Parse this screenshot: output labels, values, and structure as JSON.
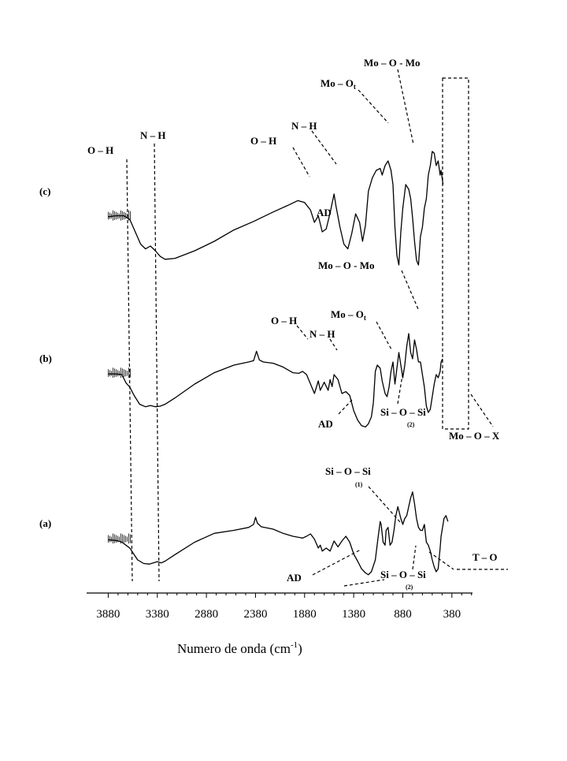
{
  "chart_data": {
    "type": "line",
    "title": "",
    "xlabel": "Numero de onda (cm",
    "xlabel_sup": "-1",
    "xlabel_close": ")",
    "ylabel": "",
    "xlim": [
      4100,
      170
    ],
    "x_reversed": true,
    "grid": false,
    "x_ticks": [
      3880,
      3380,
      2880,
      2380,
      1880,
      1380,
      880,
      380
    ],
    "series": [
      {
        "name": "(c)",
        "points": [
          [
            3880,
            0.29
          ],
          [
            3800,
            0.28
          ],
          [
            3720,
            0.28
          ],
          [
            3660,
            0.32
          ],
          [
            3600,
            0.46
          ],
          [
            3550,
            0.58
          ],
          [
            3500,
            0.63
          ],
          [
            3450,
            0.6
          ],
          [
            3400,
            0.65
          ],
          [
            3350,
            0.71
          ],
          [
            3300,
            0.74
          ],
          [
            3200,
            0.73
          ],
          [
            3000,
            0.65
          ],
          [
            2800,
            0.55
          ],
          [
            2600,
            0.43
          ],
          [
            2400,
            0.34
          ],
          [
            2200,
            0.24
          ],
          [
            2050,
            0.17
          ],
          [
            1950,
            0.12
          ],
          [
            1880,
            0.14
          ],
          [
            1820,
            0.22
          ],
          [
            1780,
            0.35
          ],
          [
            1740,
            0.28
          ],
          [
            1700,
            0.45
          ],
          [
            1660,
            0.42
          ],
          [
            1620,
            0.25
          ],
          [
            1580,
            0.05
          ],
          [
            1560,
            0.18
          ],
          [
            1520,
            0.4
          ],
          [
            1480,
            0.58
          ],
          [
            1440,
            0.63
          ],
          [
            1400,
            0.47
          ],
          [
            1360,
            0.26
          ],
          [
            1320,
            0.35
          ],
          [
            1290,
            0.55
          ],
          [
            1260,
            0.38
          ],
          [
            1230,
            0.02
          ],
          [
            1190,
            -0.12
          ],
          [
            1150,
            -0.2
          ],
          [
            1110,
            -0.22
          ],
          [
            1090,
            -0.15
          ],
          [
            1060,
            -0.25
          ],
          [
            1030,
            -0.3
          ],
          [
            1000,
            -0.2
          ],
          [
            980,
            -0.05
          ],
          [
            960,
            0.4
          ],
          [
            940,
            0.7
          ],
          [
            920,
            0.8
          ],
          [
            900,
            0.45
          ],
          [
            880,
            0.2
          ],
          [
            850,
            -0.05
          ],
          [
            820,
            0.0
          ],
          [
            800,
            0.1
          ],
          [
            780,
            0.3
          ],
          [
            760,
            0.55
          ],
          [
            740,
            0.75
          ],
          [
            720,
            0.8
          ],
          [
            700,
            0.5
          ],
          [
            680,
            0.4
          ],
          [
            660,
            0.2
          ],
          [
            640,
            0.1
          ],
          [
            620,
            -0.15
          ],
          [
            600,
            -0.25
          ],
          [
            580,
            -0.4
          ],
          [
            560,
            -0.38
          ],
          [
            540,
            -0.25
          ],
          [
            520,
            -0.3
          ],
          [
            500,
            -0.15
          ],
          [
            490,
            -0.2
          ],
          [
            470,
            -0.05
          ]
        ]
      },
      {
        "name": "(b)",
        "points": [
          [
            3880,
            0.24
          ],
          [
            3800,
            0.24
          ],
          [
            3740,
            0.25
          ],
          [
            3700,
            0.38
          ],
          [
            3660,
            0.45
          ],
          [
            3620,
            0.57
          ],
          [
            3560,
            0.72
          ],
          [
            3500,
            0.76
          ],
          [
            3450,
            0.74
          ],
          [
            3400,
            0.76
          ],
          [
            3350,
            0.75
          ],
          [
            3300,
            0.72
          ],
          [
            3200,
            0.62
          ],
          [
            3000,
            0.4
          ],
          [
            2800,
            0.22
          ],
          [
            2600,
            0.1
          ],
          [
            2450,
            0.05
          ],
          [
            2400,
            0.03
          ],
          [
            2370,
            -0.12
          ],
          [
            2340,
            0.02
          ],
          [
            2300,
            0.05
          ],
          [
            2200,
            0.07
          ],
          [
            2100,
            0.13
          ],
          [
            2000,
            0.22
          ],
          [
            1940,
            0.23
          ],
          [
            1900,
            0.2
          ],
          [
            1860,
            0.25
          ],
          [
            1820,
            0.4
          ],
          [
            1780,
            0.55
          ],
          [
            1740,
            0.35
          ],
          [
            1720,
            0.5
          ],
          [
            1680,
            0.37
          ],
          [
            1640,
            0.5
          ],
          [
            1620,
            0.33
          ],
          [
            1600,
            0.44
          ],
          [
            1580,
            0.25
          ],
          [
            1540,
            0.33
          ],
          [
            1500,
            0.55
          ],
          [
            1460,
            0.52
          ],
          [
            1420,
            0.58
          ],
          [
            1380,
            0.82
          ],
          [
            1340,
            0.97
          ],
          [
            1300,
            1.06
          ],
          [
            1260,
            1.08
          ],
          [
            1230,
            1.03
          ],
          [
            1200,
            0.92
          ],
          [
            1180,
            0.7
          ],
          [
            1160,
            0.2
          ],
          [
            1140,
            0.1
          ],
          [
            1110,
            0.15
          ],
          [
            1090,
            0.35
          ],
          [
            1060,
            0.55
          ],
          [
            1040,
            0.6
          ],
          [
            1020,
            0.45
          ],
          [
            1000,
            0.2
          ],
          [
            980,
            0.05
          ],
          [
            960,
            0.4
          ],
          [
            940,
            0.15
          ],
          [
            920,
            -0.1
          ],
          [
            900,
            0.1
          ],
          [
            880,
            0.3
          ],
          [
            860,
            0.1
          ],
          [
            840,
            -0.2
          ],
          [
            820,
            -0.4
          ],
          [
            800,
            -0.1
          ],
          [
            780,
            0.0
          ],
          [
            760,
            -0.3
          ],
          [
            740,
            -0.15
          ],
          [
            720,
            0.05
          ],
          [
            700,
            0.05
          ],
          [
            680,
            0.25
          ],
          [
            660,
            0.45
          ],
          [
            640,
            0.75
          ],
          [
            620,
            0.85
          ],
          [
            600,
            0.8
          ],
          [
            580,
            0.6
          ],
          [
            560,
            0.4
          ],
          [
            540,
            0.25
          ],
          [
            520,
            0.3
          ],
          [
            500,
            0.2
          ],
          [
            490,
            0.05
          ],
          [
            475,
            0.0
          ]
        ]
      },
      {
        "name": "(a)",
        "points": [
          [
            3880,
            0.26
          ],
          [
            3800,
            0.27
          ],
          [
            3740,
            0.3
          ],
          [
            3700,
            0.35
          ],
          [
            3660,
            0.4
          ],
          [
            3620,
            0.5
          ],
          [
            3580,
            0.6
          ],
          [
            3520,
            0.66
          ],
          [
            3460,
            0.67
          ],
          [
            3420,
            0.65
          ],
          [
            3380,
            0.63
          ],
          [
            3340,
            0.65
          ],
          [
            3300,
            0.62
          ],
          [
            3200,
            0.51
          ],
          [
            3000,
            0.3
          ],
          [
            2800,
            0.15
          ],
          [
            2600,
            0.1
          ],
          [
            2450,
            0.05
          ],
          [
            2400,
            0.0
          ],
          [
            2380,
            -0.12
          ],
          [
            2360,
            -0.02
          ],
          [
            2320,
            0.04
          ],
          [
            2200,
            0.08
          ],
          [
            2100,
            0.15
          ],
          [
            2000,
            0.2
          ],
          [
            1900,
            0.23
          ],
          [
            1860,
            0.2
          ],
          [
            1820,
            0.16
          ],
          [
            1780,
            0.25
          ],
          [
            1740,
            0.4
          ],
          [
            1720,
            0.35
          ],
          [
            1700,
            0.45
          ],
          [
            1660,
            0.4
          ],
          [
            1620,
            0.45
          ],
          [
            1580,
            0.28
          ],
          [
            1540,
            0.38
          ],
          [
            1500,
            0.28
          ],
          [
            1460,
            0.2
          ],
          [
            1420,
            0.3
          ],
          [
            1380,
            0.5
          ],
          [
            1340,
            0.62
          ],
          [
            1300,
            0.75
          ],
          [
            1260,
            0.82
          ],
          [
            1230,
            0.85
          ],
          [
            1200,
            0.8
          ],
          [
            1160,
            0.6
          ],
          [
            1130,
            0.2
          ],
          [
            1110,
            -0.05
          ],
          [
            1100,
            0.0
          ],
          [
            1080,
            0.3
          ],
          [
            1060,
            0.35
          ],
          [
            1050,
            0.1
          ],
          [
            1030,
            0.05
          ],
          [
            1010,
            0.35
          ],
          [
            990,
            0.3
          ],
          [
            970,
            0.1
          ],
          [
            950,
            -0.15
          ],
          [
            930,
            -0.3
          ],
          [
            900,
            -0.1
          ],
          [
            880,
            0.0
          ],
          [
            860,
            -0.1
          ],
          [
            840,
            -0.15
          ],
          [
            820,
            -0.3
          ],
          [
            800,
            -0.45
          ],
          [
            780,
            -0.55
          ],
          [
            760,
            -0.35
          ],
          [
            740,
            -0.1
          ],
          [
            720,
            0.05
          ],
          [
            700,
            0.1
          ],
          [
            680,
            0.1
          ],
          [
            660,
            0.0
          ],
          [
            640,
            0.3
          ],
          [
            620,
            0.35
          ],
          [
            600,
            0.45
          ],
          [
            580,
            0.6
          ],
          [
            560,
            0.72
          ],
          [
            540,
            0.8
          ],
          [
            520,
            0.75
          ],
          [
            500,
            0.4
          ],
          [
            490,
            0.2
          ],
          [
            470,
            0.0
          ],
          [
            460,
            -0.1
          ],
          [
            440,
            -0.15
          ],
          [
            420,
            -0.05
          ]
        ]
      }
    ],
    "annotations": {
      "c_oh": "O – H",
      "c_nh": "N – H",
      "c_oh2": "O – H",
      "c_nh2": "N – H",
      "c_moot": "Mo – O",
      "c_moot_sub": "t",
      "c_moomo": "Mo – O - Mo",
      "c_ad": "AD",
      "b_oh": "O – H",
      "b_nh": "N – H",
      "b_moot": "Mo – O",
      "b_moot_sub": "t",
      "b_moomo": "Mo – O - Mo",
      "b_ad": "AD",
      "b_siosi": "Si – O – Si",
      "b_siosi_sub": "(2)",
      "b_moox": "Mo – O – X",
      "a_siosi1": "Si – O – Si",
      "a_siosi1_sub": "(1)",
      "a_ad": "AD",
      "a_siosi2": "Si – O – Si",
      "a_siosi2_sub": "(2)",
      "a_to": "T – O"
    }
  }
}
